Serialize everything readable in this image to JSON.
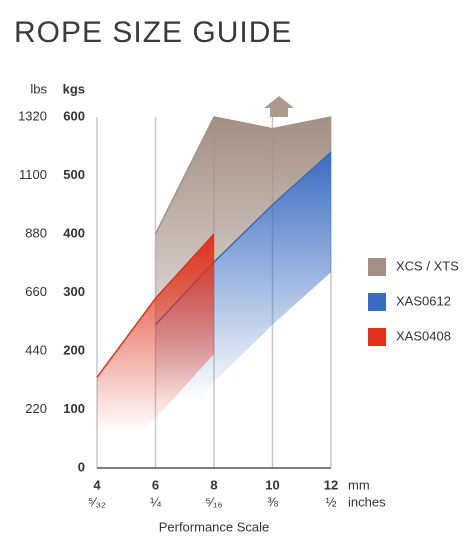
{
  "chart_data": {
    "type": "area",
    "title": "ROPE SIZE GUIDE",
    "y_axis_label": "kgs",
    "y2_axis_label": "lbs",
    "x_axis_label": "Performance Scale",
    "x_unit_label": "mm",
    "x_secondary_unit_label": "inches",
    "xlim": [
      4,
      12
    ],
    "xticks": [
      4,
      6,
      8,
      10,
      12
    ],
    "x_secondary_labels": [
      "⁵⁄₃₂",
      "¼",
      "⁵⁄₁₆",
      "⅜",
      "½"
    ],
    "ylim": [
      0,
      600
    ],
    "yticks": [
      0,
      100,
      200,
      300,
      400,
      500,
      600
    ],
    "y2lim": [
      0,
      1320
    ],
    "y2ticks": [
      220,
      440,
      660,
      880,
      1100,
      1320
    ],
    "grid": true,
    "legend": "right",
    "series": [
      {
        "name": "XCS / XTS",
        "color": "#a38f84",
        "x": [
          6,
          8,
          10,
          12
        ],
        "values": [
          400,
          600,
          580,
          600
        ]
      },
      {
        "name": "XAS0612",
        "color": "#3a6bc0",
        "x": [
          6,
          8,
          10,
          12
        ],
        "values": [
          245,
          352,
          450,
          540
        ]
      },
      {
        "name": "XAS0408",
        "color": "#e0321c",
        "x": [
          4,
          6,
          8
        ],
        "values": [
          155,
          290,
          400
        ]
      }
    ]
  }
}
